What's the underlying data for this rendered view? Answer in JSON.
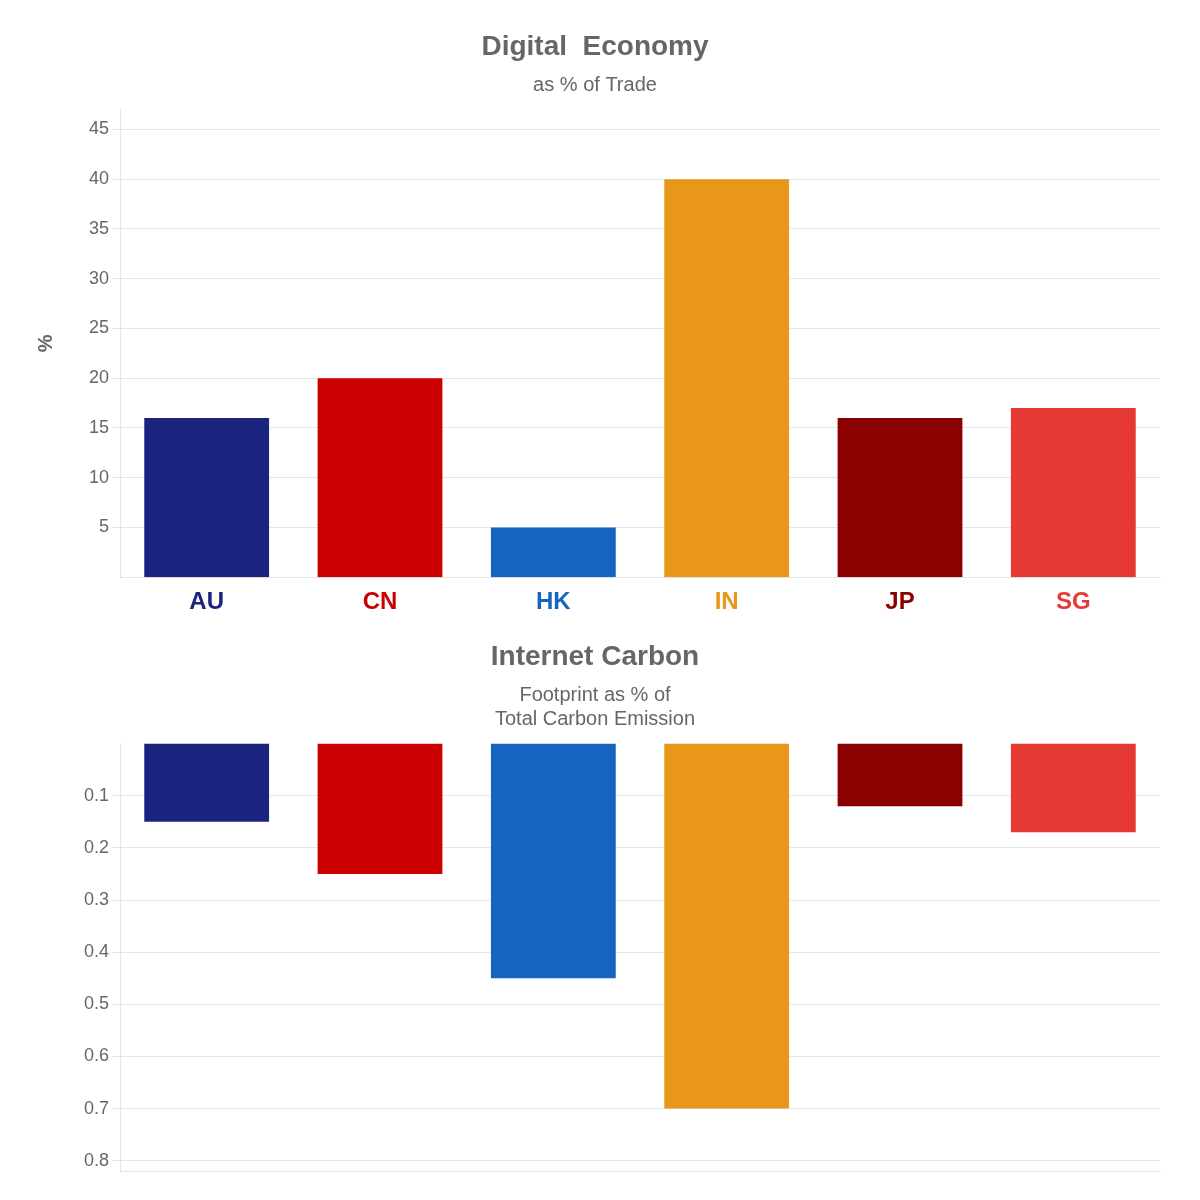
{
  "chart_data": [
    {
      "type": "bar",
      "title": "Digital  Economy",
      "subtitle": "as % of Trade",
      "categories": [
        "AU",
        "CN",
        "HK",
        "IN",
        "JP",
        "SG"
      ],
      "values": [
        16,
        20,
        5,
        40,
        16,
        17
      ],
      "colors": [
        "#1a237e",
        "#cc0000",
        "#1565c0",
        "#e8971a",
        "#8b0000",
        "#e53935"
      ],
      "ylabel": "%",
      "ylim": [
        0,
        47
      ],
      "yticks": [
        5,
        10,
        15,
        20,
        25,
        30,
        35,
        40,
        45
      ],
      "grid": true
    },
    {
      "type": "bar",
      "title": "Internet Carbon",
      "subtitle": [
        "Footprint as % of",
        "Total Carbon Emission"
      ],
      "categories": [
        "AU",
        "CN",
        "HK",
        "IN",
        "JP",
        "SG"
      ],
      "values": [
        0.15,
        0.25,
        0.45,
        0.7,
        0.12,
        0.17
      ],
      "colors": [
        "#1a237e",
        "#cc0000",
        "#1565c0",
        "#e8971a",
        "#8b0000",
        "#e53935"
      ],
      "ylim": [
        0,
        0.82
      ],
      "yticks": [
        0.1,
        0.2,
        0.3,
        0.4,
        0.5,
        0.6,
        0.7,
        0.8
      ],
      "grid": true,
      "tick_labels": "y"
    }
  ]
}
